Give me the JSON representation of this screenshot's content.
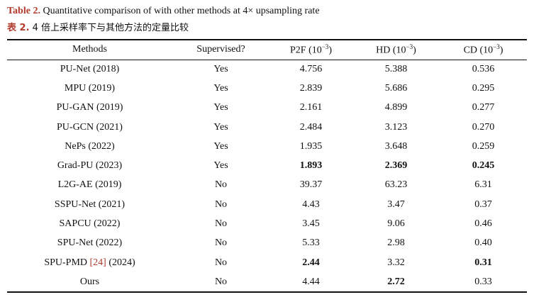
{
  "caption": {
    "en_label": "Table 2.",
    "en_text": "Quantitative comparison of with other methods at 4× upsampling rate",
    "zh_label": "表 2.",
    "zh_text": "4 倍上采样率下与其他方法的定量比较"
  },
  "columns": [
    "Methods",
    "Supervised?",
    "P2F (10",
    "HD (10",
    "CD (10"
  ],
  "unit_exp": "−3",
  "unit_close": ")",
  "rows": [
    {
      "method": "PU-Net (2018)",
      "sup": "Yes",
      "p2f": "4.756",
      "hd": "5.388",
      "cd": "0.536"
    },
    {
      "method": "MPU (2019)",
      "sup": "Yes",
      "p2f": "2.839",
      "hd": "5.686",
      "cd": "0.295"
    },
    {
      "method": "PU-GAN (2019)",
      "sup": "Yes",
      "p2f": "2.161",
      "hd": "4.899",
      "cd": "0.277"
    },
    {
      "method": "PU-GCN (2021)",
      "sup": "Yes",
      "p2f": "2.484",
      "hd": "3.123",
      "cd": "0.270"
    },
    {
      "method": "NePs (2022)",
      "sup": "Yes",
      "p2f": "1.935",
      "hd": "3.648",
      "cd": "0.259"
    },
    {
      "method": "Grad-PU (2023)",
      "sup": "Yes",
      "p2f": "1.893",
      "hd": "2.369",
      "cd": "0.245"
    },
    {
      "method": "L2G-AE (2019)",
      "sup": "No",
      "p2f": "39.37",
      "hd": "63.23",
      "cd": "6.31"
    },
    {
      "method": "SSPU-Net (2021)",
      "sup": "No",
      "p2f": "4.43",
      "hd": "3.47",
      "cd": "0.37"
    },
    {
      "method": "SAPCU (2022)",
      "sup": "No",
      "p2f": "3.45",
      "hd": "9.06",
      "cd": "0.46"
    },
    {
      "method": "SPU-Net (2022)",
      "sup": "No",
      "p2f": "5.33",
      "hd": "2.98",
      "cd": "0.40"
    },
    {
      "method_pre": "SPU-PMD ",
      "method_ref": "[24]",
      "method_post": " (2024)",
      "sup": "No",
      "p2f": "2.44",
      "hd": "3.32",
      "cd": "0.31"
    },
    {
      "method": "Ours",
      "sup": "No",
      "p2f": "4.44",
      "hd": "2.72",
      "cd": "0.33"
    }
  ]
}
